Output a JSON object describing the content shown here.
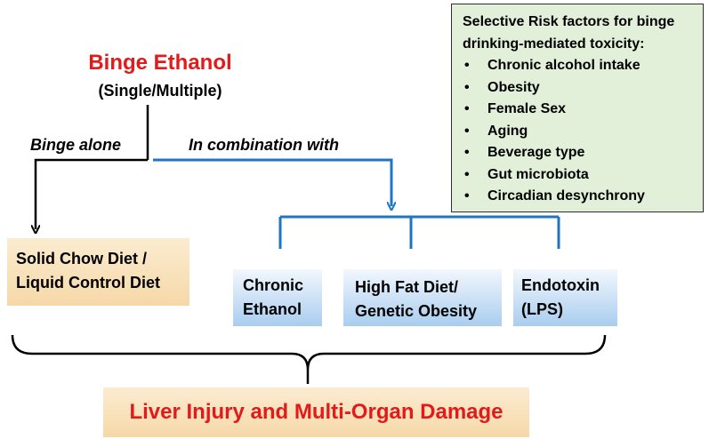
{
  "colors": {
    "title_red": "#e21a1a",
    "blue_lines": "#1f74c4",
    "black_lines": "#000000",
    "tan_box": "#f6d8a8",
    "blue_box": "#a9cdef",
    "green_box": "#e2efd9"
  },
  "header": {
    "title": "Binge Ethanol",
    "subtitle": "(Single/Multiple)"
  },
  "branches": {
    "left_label": "Binge alone",
    "right_label": "In combination with"
  },
  "left_box": {
    "line1": "Solid Chow Diet /",
    "line2": "Liquid Control Diet"
  },
  "combination_boxes": [
    {
      "line1": "Chronic",
      "line2": "Ethanol"
    },
    {
      "line1": "High Fat Diet/",
      "line2": "Genetic Obesity"
    },
    {
      "line1": "Endotoxin",
      "line2": "(LPS)"
    }
  ],
  "risk_factors": {
    "heading_line1": "Selective Risk factors for binge",
    "heading_line2": "drinking-mediated toxicity:",
    "items": [
      "Chronic alcohol intake",
      "Obesity",
      "Female Sex",
      "Aging",
      "Beverage type",
      "Gut microbiota",
      "Circadian desynchrony"
    ]
  },
  "outcome": {
    "label": "Liver Injury and Multi-Organ Damage"
  }
}
